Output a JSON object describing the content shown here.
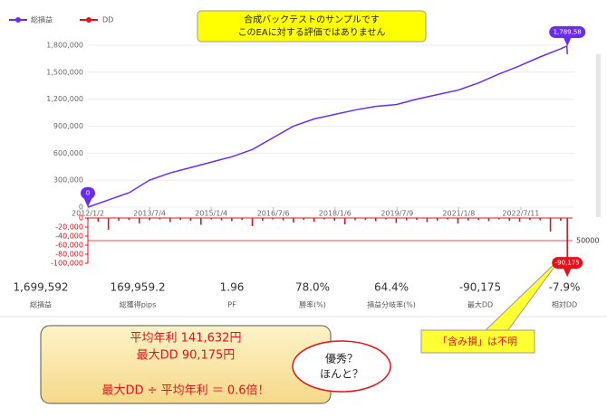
{
  "notice": [
    "合成バックテストのサンプルです",
    "このEAに対する評価ではありません"
  ],
  "chart_data": [
    {
      "type": "line",
      "series": [
        {
          "name": "総損益",
          "color": "#6a2cf0",
          "x": [
            2012,
            2012.5,
            2013,
            2013.5,
            2014,
            2014.5,
            2015,
            2015.5,
            2016,
            2016.5,
            2017,
            2017.5,
            2018,
            2018.5,
            2019,
            2019.5,
            2020,
            2020.5,
            2021,
            2021.5,
            2022,
            2022.5,
            2023,
            2023.5,
            2023.65,
            2023.66
          ],
          "values": [
            0,
            80000,
            160000,
            300000,
            380000,
            440000,
            500000,
            560000,
            640000,
            770000,
            900000,
            980000,
            1030000,
            1080000,
            1120000,
            1140000,
            1200000,
            1250000,
            1300000,
            1380000,
            1480000,
            1570000,
            1670000,
            1760000,
            1790000,
            1699592
          ]
        }
      ],
      "xlim": [
        2012,
        2023.7
      ],
      "xticks": [
        {
          "value": 2012,
          "label": "2012/1/2"
        },
        {
          "value": 2013.5,
          "label": "2013/7/4"
        },
        {
          "value": 2015,
          "label": "2015/1/4"
        },
        {
          "value": 2016.51,
          "label": "2016/7/6"
        },
        {
          "value": 2018.01,
          "label": "2018/1/6"
        },
        {
          "value": 2019.52,
          "label": "2019/7/9"
        },
        {
          "value": 2021.02,
          "label": "2021/1/8"
        },
        {
          "value": 2022.53,
          "label": "2022/7/11"
        }
      ],
      "ylim": [
        0,
        1900000
      ],
      "yticks": [
        0,
        {
          "value": 300000,
          "label": "300,000"
        },
        {
          "value": 600000,
          "label": "600,000"
        },
        {
          "value": 900000,
          "label": "900,000"
        },
        {
          "value": 1200000,
          "label": "1,200,000"
        },
        {
          "value": 1500000,
          "label": "1,500,000"
        },
        {
          "value": 1800000,
          "label": "1,800,000"
        }
      ],
      "grid": true,
      "start_label": "0",
      "end_label": "1,789,58"
    },
    {
      "type": "bar",
      "series": [
        {
          "name": "DD",
          "color": "#e8101a",
          "x": [
            2012,
            2012.25,
            2012.5,
            2012.75,
            2013,
            2013.25,
            2013.5,
            2013.75,
            2014,
            2014.25,
            2014.5,
            2014.75,
            2015,
            2015.25,
            2015.5,
            2015.75,
            2016,
            2016.25,
            2016.5,
            2016.75,
            2017,
            2017.25,
            2017.5,
            2017.75,
            2018,
            2018.25,
            2018.5,
            2018.75,
            2019,
            2019.25,
            2019.5,
            2019.75,
            2020,
            2020.25,
            2020.5,
            2020.75,
            2021,
            2021.25,
            2021.5,
            2021.75,
            2022,
            2022.25,
            2022.5,
            2022.75,
            2023,
            2023.25,
            2023.5,
            2023.66
          ],
          "values": [
            -3000,
            -8000,
            -26000,
            -6000,
            -4000,
            -12000,
            -5000,
            -3000,
            -9000,
            -4000,
            -6000,
            -15000,
            -3000,
            -5000,
            -7000,
            -4000,
            -18000,
            -6000,
            -3000,
            -5000,
            -10000,
            -4000,
            -8000,
            -3000,
            -6000,
            -14000,
            -5000,
            -4000,
            -7000,
            -3000,
            -11000,
            -5000,
            -4000,
            -9000,
            -6000,
            -3000,
            -12000,
            -5000,
            -4000,
            -7000,
            -3000,
            -6000,
            -8000,
            -4000,
            -5000,
            -30000,
            -6000,
            -90175
          ]
        }
      ],
      "xlim": [
        2012,
        2023.7
      ],
      "ylim": [
        -100000,
        0
      ],
      "yticks": [
        0,
        {
          "value": -20000,
          "label": "-20,000"
        },
        {
          "value": -40000,
          "label": "-40,000"
        },
        {
          "value": -60000,
          "label": "-60,000"
        },
        {
          "value": -80000,
          "label": "-80,000"
        },
        {
          "value": -100000,
          "label": "-100,000"
        }
      ],
      "ref_line": {
        "value": -50000,
        "label": "50000"
      },
      "end_label": "-90,175"
    }
  ],
  "stats": [
    {
      "value": "1,699,592",
      "label": "総損益"
    },
    {
      "value": "169,959.2",
      "label": "総獲得pips"
    },
    {
      "value": "1.96",
      "label": "PF"
    },
    {
      "value": "78.0%",
      "label": "勝率(%)"
    },
    {
      "value": "64.4%",
      "label": "損益分岐率(%)"
    },
    {
      "value": "-90,175",
      "label": "最大DD"
    },
    {
      "value": "-7.9%",
      "label": "相対DD"
    }
  ],
  "summary": [
    "平均年利 141,632円",
    "最大DD 90,175円",
    "最大DD ÷ 平均年利 ＝ 0.6倍！"
  ],
  "bubble": [
    "優秀？",
    "ほんと？"
  ],
  "note": "「含み損」は不明"
}
